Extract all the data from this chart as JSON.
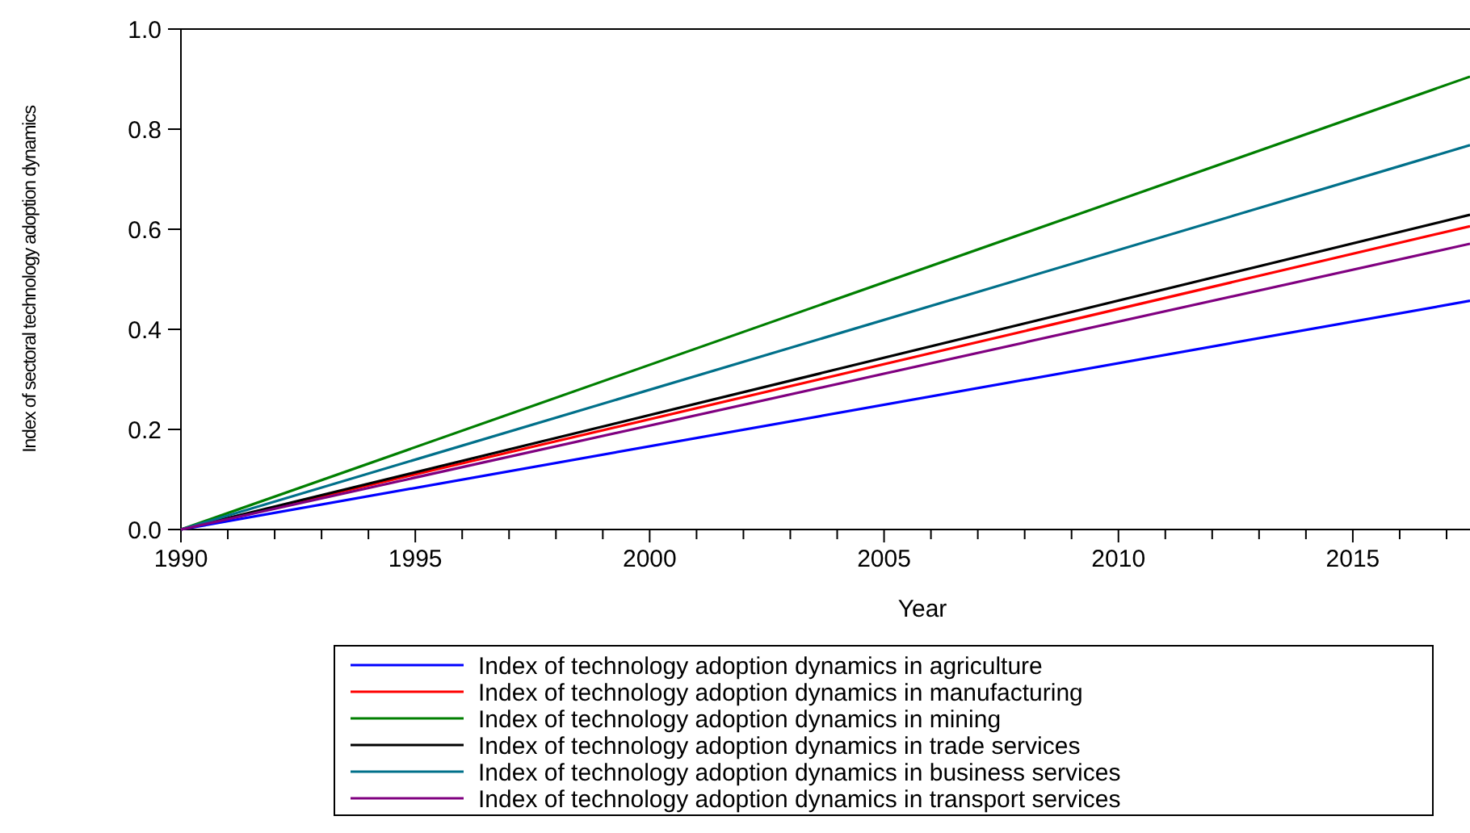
{
  "chart_data": {
    "type": "line",
    "xlabel": "Year",
    "ylabel": "Index of sectoral technology adoption dynamics",
    "x": [
      1990,
      2017.5
    ],
    "series": [
      {
        "name": "Index of technology adoption dynamics in agriculture",
        "color": "#0000ff",
        "values": [
          0,
          0.457
        ]
      },
      {
        "name": "Index of technology adoption dynamics in manufacturing",
        "color": "#ff0000",
        "values": [
          0,
          0.606
        ]
      },
      {
        "name": "Index of technology adoption dynamics in mining",
        "color": "#007f00",
        "values": [
          0,
          0.905
        ]
      },
      {
        "name": "Index of technology adoption dynamics in trade services",
        "color": "#000000",
        "values": [
          0,
          0.629
        ]
      },
      {
        "name": "Index of technology adoption dynamics in business services",
        "color": "#00708a",
        "values": [
          0,
          0.768
        ]
      },
      {
        "name": "Index of technology adoption dynamics in transport services",
        "color": "#800080",
        "values": [
          0,
          0.571
        ]
      }
    ],
    "xlim": [
      1990,
      2017.5
    ],
    "xticks": [
      1990,
      {
        "value": 1991,
        "label": null
      },
      {
        "value": 1992,
        "label": null
      },
      {
        "value": 1993,
        "label": null
      },
      {
        "value": 1994,
        "label": null
      },
      1995,
      {
        "value": 1996,
        "label": null
      },
      {
        "value": 1997,
        "label": null
      },
      {
        "value": 1998,
        "label": null
      },
      {
        "value": 1999,
        "label": null
      },
      2000,
      {
        "value": 2001,
        "label": null
      },
      {
        "value": 2002,
        "label": null
      },
      {
        "value": 2003,
        "label": null
      },
      {
        "value": 2004,
        "label": null
      },
      2005,
      {
        "value": 2006,
        "label": null
      },
      {
        "value": 2007,
        "label": null
      },
      {
        "value": 2008,
        "label": null
      },
      {
        "value": 2009,
        "label": null
      },
      2010,
      {
        "value": 2011,
        "label": null
      },
      {
        "value": 2012,
        "label": null
      },
      {
        "value": 2013,
        "label": null
      },
      {
        "value": 2014,
        "label": null
      },
      2015,
      {
        "value": 2016,
        "label": null
      },
      {
        "value": 2017,
        "label": null
      }
    ],
    "ylim": [
      0,
      1
    ],
    "yticks": [
      {
        "value": 0,
        "label": "0.0"
      },
      {
        "value": 0.2,
        "label": "0.2"
      },
      {
        "value": 0.4,
        "label": "0.4"
      },
      {
        "value": 0.6,
        "label": "0.6"
      },
      {
        "value": 0.8,
        "label": "0.8"
      },
      {
        "value": 1,
        "label": "1.0"
      }
    ],
    "grid": false,
    "legend": "bottom",
    "marker": "none",
    "line_style": "solid"
  }
}
